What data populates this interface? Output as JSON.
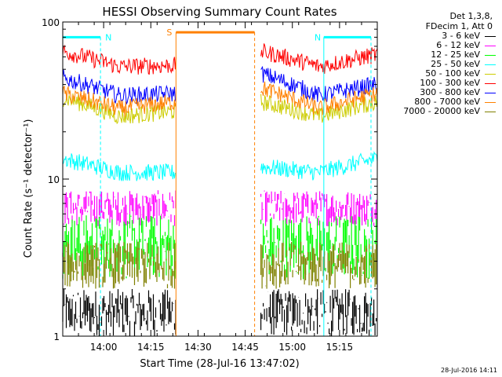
{
  "chart_data": {
    "type": "line",
    "title": "HESSI Observing Summary Count Rates",
    "xlabel": "Start Time (28-Jul-16 13:47:02)",
    "ylabel": "Count Rate (s⁻¹ detector⁻¹)",
    "yscale": "log",
    "ylim": [
      1,
      100
    ],
    "xlim": [
      "13:47",
      "15:27"
    ],
    "x_ticks": [
      "14:00",
      "14:15",
      "14:30",
      "14:45",
      "15:00",
      "15:15"
    ],
    "y_ticks": [
      "1",
      "10",
      "100"
    ],
    "grid": false,
    "legend_position": "top-right",
    "legend_header": [
      "Det 1,3,8,",
      "FDecim 1, Att 0"
    ],
    "series": [
      {
        "name": "3 - 6 keV",
        "color": "#000000",
        "segments": [
          {
            "x": [
              "13:47",
              "14:23"
            ],
            "band": [
              1.0,
              2.0
            ]
          },
          {
            "x": [
              "14:50",
              "15:27"
            ],
            "band": [
              1.0,
              2.0
            ]
          }
        ]
      },
      {
        "name": "6 - 12 keV",
        "color": "#ff00ff",
        "segments": [
          {
            "x": [
              "13:47",
              "14:23"
            ],
            "band": [
              5.0,
              8.5
            ]
          },
          {
            "x": [
              "14:50",
              "15:27"
            ],
            "band": [
              5.0,
              8.5
            ]
          }
        ]
      },
      {
        "name": "12 - 25 keV",
        "color": "#00ff00",
        "segments": [
          {
            "x": [
              "13:47",
              "14:23"
            ],
            "band": [
              2.3,
              6.0
            ]
          },
          {
            "x": [
              "14:50",
              "15:27"
            ],
            "band": [
              2.3,
              6.0
            ]
          }
        ]
      },
      {
        "name": "25 - 50 keV",
        "color": "#00ffff",
        "segments": [
          {
            "x": [
              "13:47",
              "14:23"
            ],
            "start": 13.5,
            "min": 11.0,
            "end": 11.0
          },
          {
            "x": [
              "14:50",
              "15:27"
            ],
            "start": 12.0,
            "min": 11.0,
            "end": 13.5
          }
        ]
      },
      {
        "name": "50 - 100 keV",
        "color": "#cccc00",
        "segments": [
          {
            "x": [
              "13:47",
              "14:23"
            ],
            "start": 33.0,
            "min": 25.0,
            "end": 27.0
          },
          {
            "x": [
              "14:50",
              "15:27"
            ],
            "start": 31.0,
            "min": 25.0,
            "end": 31.0
          }
        ]
      },
      {
        "name": "100 - 300 keV",
        "color": "#ff0000",
        "segments": [
          {
            "x": [
              "13:47",
              "14:23"
            ],
            "start": 65.0,
            "min": 52.0,
            "end": 53.0
          },
          {
            "x": [
              "14:50",
              "15:27"
            ],
            "start": 65.0,
            "min": 52.0,
            "end": 62.0
          }
        ]
      },
      {
        "name": "300 - 800 keV",
        "color": "#0000ff",
        "segments": [
          {
            "x": [
              "13:47",
              "14:23"
            ],
            "start": 44.0,
            "min": 34.0,
            "end": 35.0
          },
          {
            "x": [
              "14:50",
              "15:27"
            ],
            "start": 47.0,
            "min": 34.0,
            "end": 40.0
          }
        ]
      },
      {
        "name": "800 - 7000 keV",
        "color": "#ff8000",
        "segments": [
          {
            "x": [
              "13:47",
              "14:23"
            ],
            "start": 35.0,
            "min": 28.0,
            "end": 31.0
          },
          {
            "x": [
              "14:50",
              "15:27"
            ],
            "start": 38.0,
            "min": 28.0,
            "end": 35.0
          }
        ]
      },
      {
        "name": "7000 - 20000 keV",
        "color": "#808000",
        "segments": [
          {
            "x": [
              "13:47",
              "14:23"
            ],
            "band": [
              2.0,
              4.0
            ]
          },
          {
            "x": [
              "14:50",
              "15:27"
            ],
            "band": [
              2.0,
              4.0
            ]
          }
        ]
      }
    ],
    "annotations": [
      {
        "label": "N",
        "color": "#00ffff",
        "x": [
          "13:47",
          "13:59"
        ],
        "y": 80
      },
      {
        "label": "N",
        "color": "#00ffff",
        "x": [
          "15:10",
          "15:25"
        ],
        "y": 80
      },
      {
        "label": "S",
        "color": "#ff8000",
        "x": [
          "14:23",
          "14:48"
        ],
        "y": 86
      }
    ]
  },
  "timestamp": "28-Jul-2016 14:11"
}
